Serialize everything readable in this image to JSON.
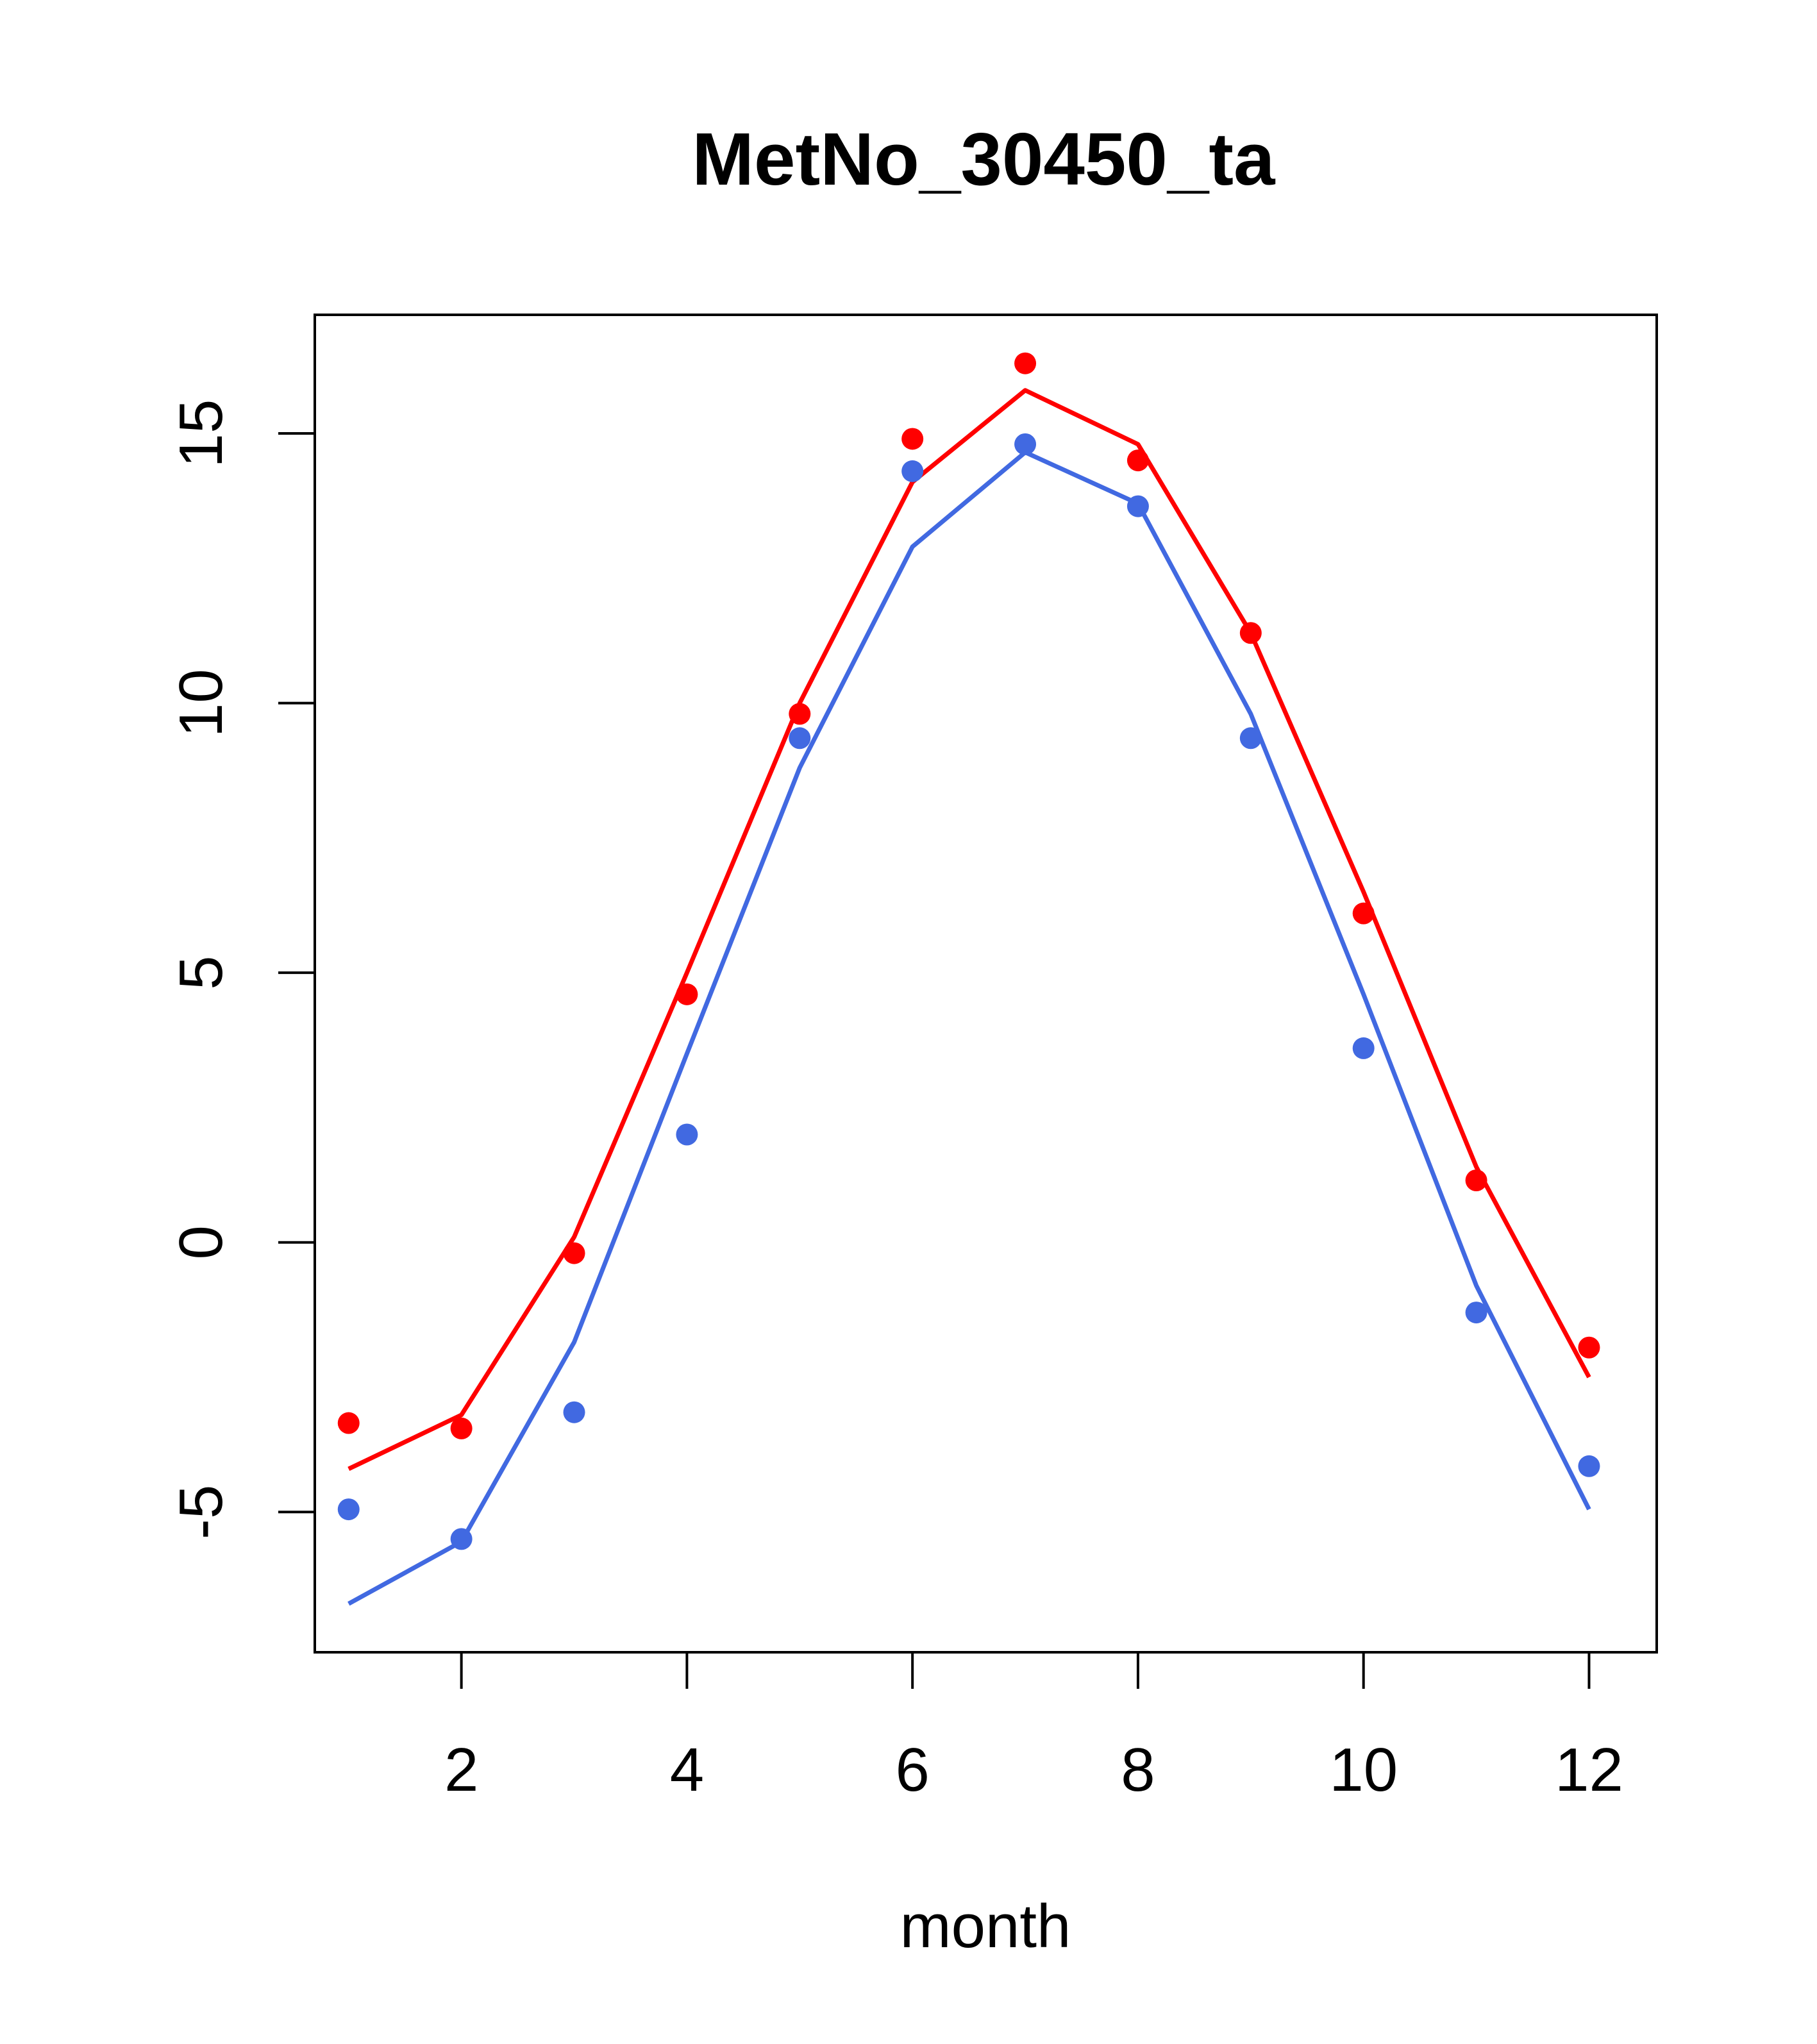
{
  "chart_data": {
    "type": "line",
    "title": "MetNo_30450_ta",
    "xlabel": "month",
    "ylabel": "",
    "x": [
      1,
      2,
      3,
      4,
      5,
      6,
      7,
      8,
      9,
      10,
      11,
      12
    ],
    "xlim": [
      0.7,
      12.6
    ],
    "ylim": [
      -7.6,
      17.2
    ],
    "x_ticks": [
      2,
      4,
      6,
      8,
      10,
      12
    ],
    "x_tick_labels": [
      "2",
      "4",
      "6",
      "8",
      "10",
      "12"
    ],
    "y_ticks": [
      -5,
      0,
      5,
      10,
      15
    ],
    "y_tick_labels": [
      "-5",
      "0",
      "5",
      "10",
      "15"
    ],
    "grid": false,
    "legend": false,
    "series": [
      {
        "color": "#FF0000",
        "style": "line",
        "values": [
          -4.2,
          -3.2,
          0.1,
          5.0,
          10.0,
          14.1,
          15.8,
          14.8,
          11.3,
          6.5,
          1.4,
          -2.5
        ]
      },
      {
        "color": "#FF0000",
        "style": "points",
        "values": [
          -3.35,
          -3.45,
          -0.2,
          4.6,
          9.8,
          14.9,
          16.3,
          14.5,
          11.3,
          6.1,
          1.15,
          -1.95
        ]
      },
      {
        "color": "#4169E1",
        "style": "line",
        "values": [
          -6.7,
          -5.55,
          -1.85,
          3.5,
          8.8,
          12.9,
          14.65,
          13.7,
          9.8,
          4.6,
          -0.8,
          -4.95
        ]
      },
      {
        "color": "#4169E1",
        "style": "points",
        "values": [
          -4.95,
          -5.5,
          -3.15,
          2.0,
          9.35,
          14.3,
          14.8,
          13.65,
          9.35,
          3.6,
          -1.3,
          -4.15
        ]
      }
    ]
  }
}
